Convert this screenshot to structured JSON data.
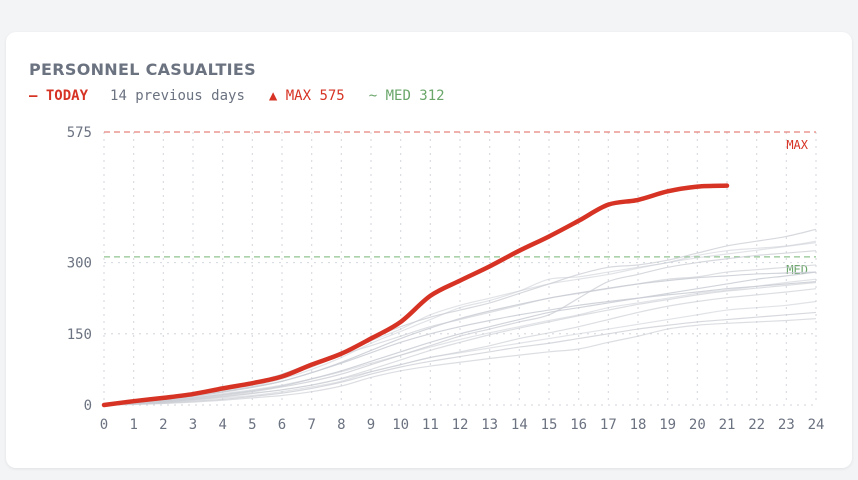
{
  "header": {
    "title": "PERSONNEL CASUALTIES",
    "legend_today": "— TODAY",
    "legend_previous": "14 previous days",
    "legend_max": "▲ MAX 575",
    "legend_med": "~ MED 312"
  },
  "colors": {
    "today": "#d63324",
    "previous": "#c9ccd3",
    "max": "#e8817a",
    "med": "#8fc48f",
    "grid": "#d9dce1"
  },
  "chart_data": {
    "type": "line",
    "title": "PERSONNEL CASUALTIES",
    "xlabel": "",
    "ylabel": "",
    "x": [
      0,
      1,
      2,
      3,
      4,
      5,
      6,
      7,
      8,
      9,
      10,
      11,
      12,
      13,
      14,
      15,
      16,
      17,
      18,
      19,
      20,
      21,
      22,
      23,
      24
    ],
    "xlim": [
      0,
      24
    ],
    "ylim": [
      0,
      575
    ],
    "ytick_values": [
      0,
      150,
      300,
      575
    ],
    "grid": true,
    "reference_lines": [
      {
        "name": "MAX",
        "value": 575
      },
      {
        "name": "MED",
        "value": 312
      }
    ],
    "today": {
      "name": "TODAY",
      "values": [
        0,
        8,
        15,
        23,
        35,
        46,
        60,
        85,
        108,
        140,
        175,
        230,
        262,
        292,
        325,
        355,
        388,
        422,
        432,
        450,
        460,
        462
      ]
    },
    "previous_days": [
      {
        "values": [
          0,
          4,
          10,
          20,
          30,
          40,
          55,
          75,
          100,
          130,
          155,
          180,
          205,
          220,
          240,
          265,
          270,
          280,
          290,
          300,
          315,
          325,
          330,
          335,
          345
        ]
      },
      {
        "values": [
          0,
          5,
          12,
          22,
          32,
          45,
          60,
          80,
          105,
          125,
          145,
          165,
          180,
          195,
          210,
          225,
          235,
          245,
          255,
          265,
          270,
          280,
          285,
          290,
          295
        ]
      },
      {
        "values": [
          0,
          6,
          14,
          24,
          36,
          48,
          65,
          88,
          112,
          140,
          165,
          185,
          200,
          215,
          235,
          255,
          275,
          290,
          295,
          305,
          320,
          335,
          345,
          355,
          370
        ]
      },
      {
        "values": [
          0,
          3,
          8,
          15,
          22,
          30,
          40,
          55,
          72,
          92,
          112,
          132,
          150,
          165,
          180,
          195,
          205,
          215,
          225,
          235,
          245,
          255,
          265,
          272,
          280
        ]
      },
      {
        "values": [
          0,
          4,
          9,
          16,
          24,
          32,
          42,
          55,
          70,
          88,
          105,
          122,
          138,
          152,
          165,
          178,
          190,
          205,
          215,
          225,
          235,
          242,
          250,
          258,
          265
        ]
      },
      {
        "values": [
          0,
          2,
          6,
          12,
          18,
          25,
          32,
          42,
          55,
          70,
          85,
          100,
          112,
          125,
          140,
          152,
          165,
          180,
          195,
          208,
          218,
          226,
          232,
          238,
          245
        ]
      },
      {
        "values": [
          0,
          3,
          7,
          13,
          20,
          28,
          38,
          50,
          65,
          85,
          105,
          125,
          145,
          160,
          175,
          190,
          225,
          260,
          275,
          290,
          300,
          308,
          315,
          320,
          325
        ]
      },
      {
        "values": [
          0,
          5,
          11,
          19,
          28,
          38,
          50,
          68,
          88,
          110,
          132,
          150,
          165,
          178,
          190,
          200,
          210,
          218,
          225,
          232,
          238,
          245,
          250,
          255,
          260
        ]
      },
      {
        "values": [
          0,
          2,
          5,
          10,
          15,
          20,
          28,
          38,
          50,
          70,
          85,
          100,
          110,
          120,
          130,
          140,
          150,
          160,
          170,
          180,
          190,
          200,
          205,
          210,
          218
        ]
      },
      {
        "values": [
          0,
          1,
          3,
          6,
          10,
          15,
          20,
          28,
          40,
          58,
          72,
          82,
          90,
          98,
          105,
          112,
          118,
          132,
          145,
          160,
          168,
          172,
          175,
          178,
          182
        ]
      },
      {
        "values": [
          0,
          2,
          4,
          8,
          12,
          18,
          25,
          35,
          48,
          65,
          80,
          92,
          102,
          112,
          122,
          130,
          140,
          150,
          160,
          168,
          175,
          180,
          185,
          190,
          195
        ]
      },
      {
        "values": [
          0,
          4,
          10,
          18,
          27,
          37,
          50,
          68,
          90,
          115,
          140,
          162,
          182,
          198,
          212,
          225,
          236,
          246,
          255,
          262,
          268,
          272,
          276,
          278,
          280
        ]
      },
      {
        "values": [
          0,
          6,
          13,
          22,
          33,
          45,
          60,
          82,
          108,
          135,
          160,
          190,
          210,
          225,
          240,
          255,
          265,
          275,
          288,
          300,
          310,
          318,
          326,
          334,
          342
        ]
      },
      {
        "values": [
          0,
          3,
          6,
          11,
          17,
          24,
          32,
          42,
          56,
          75,
          95,
          115,
          132,
          148,
          162,
          175,
          188,
          200,
          212,
          222,
          232,
          240,
          246,
          252,
          258
        ]
      }
    ],
    "annotations": [
      "MAX",
      "MED"
    ]
  }
}
